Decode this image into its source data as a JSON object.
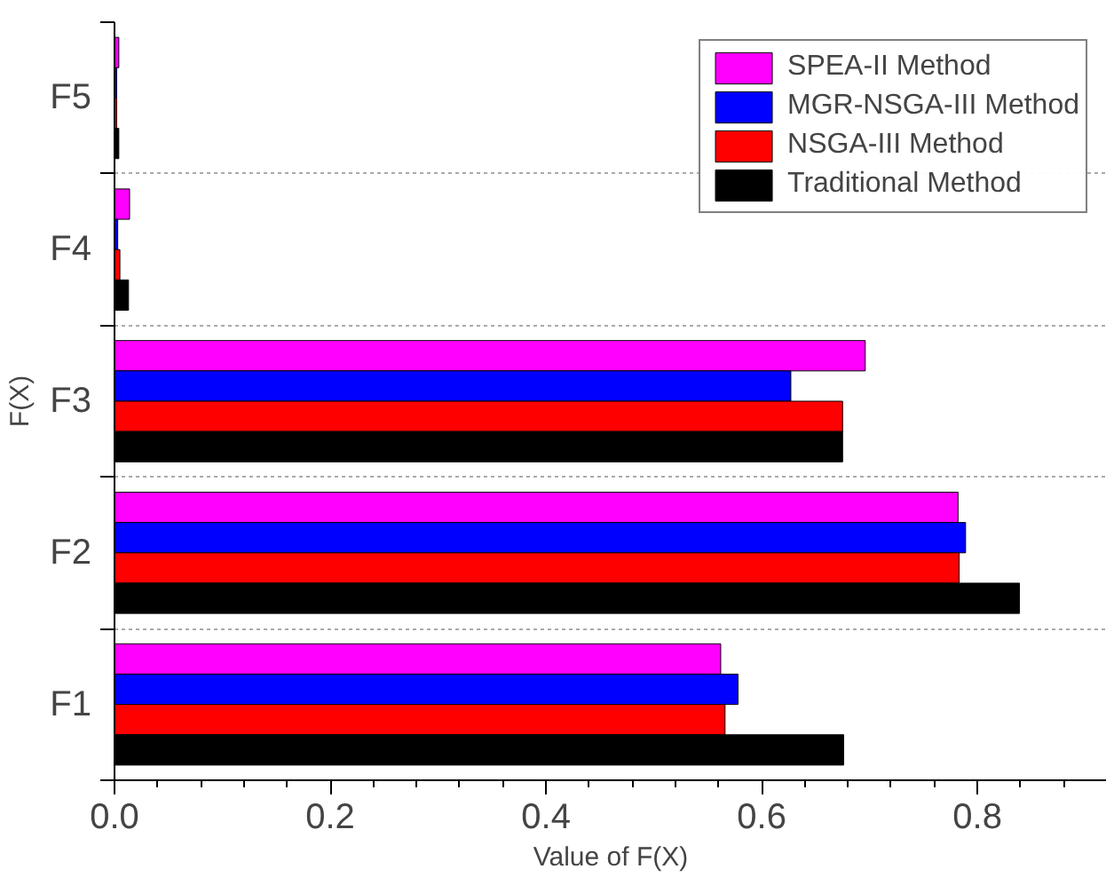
{
  "chart_data": {
    "type": "bar",
    "orientation": "horizontal",
    "xlabel": "Value of F(X)",
    "ylabel": "F(X)",
    "categories": [
      "F5",
      "F4",
      "F3",
      "F2",
      "F1"
    ],
    "series": [
      {
        "name": "SPEA-II Method",
        "color": "#ff00ff",
        "values": [
          0.004,
          0.014,
          0.696,
          0.782,
          0.562
        ]
      },
      {
        "name": "MGR-NSGA-III Method",
        "color": "#0000ff",
        "values": [
          0.002,
          0.003,
          0.627,
          0.789,
          0.578
        ]
      },
      {
        "name": "NSGA-III Method",
        "color": "#ff0000",
        "values": [
          0.002,
          0.005,
          0.675,
          0.783,
          0.566
        ]
      },
      {
        "name": "Traditional Method",
        "color": "#000000",
        "values": [
          0.004,
          0.013,
          0.675,
          0.839,
          0.676
        ]
      }
    ],
    "xlim": [
      0,
      0.92
    ],
    "xticks": [
      {
        "value": 0,
        "label": "0.0"
      },
      0.2,
      0.4,
      0.6,
      0.8
    ],
    "grid": "y",
    "legend": "top right"
  }
}
